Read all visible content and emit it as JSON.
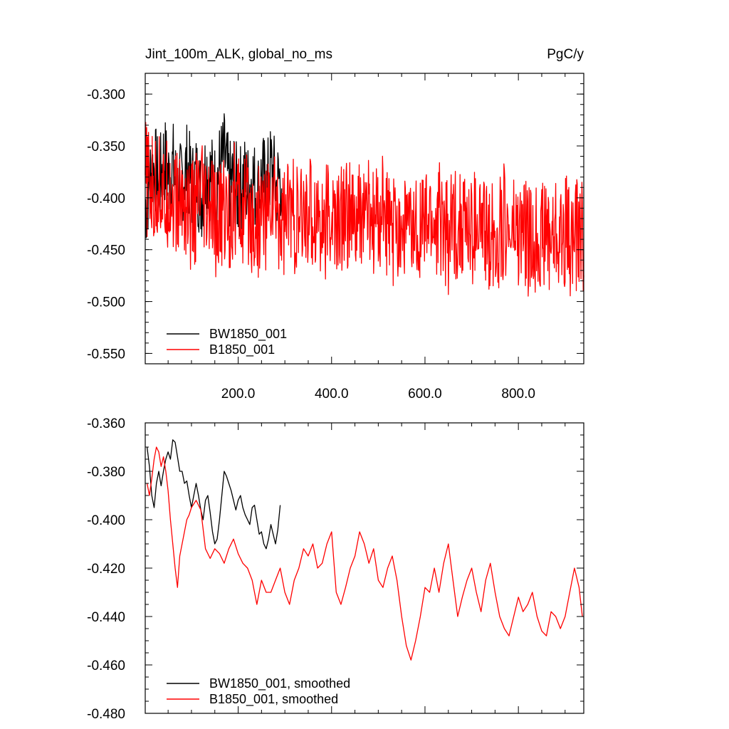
{
  "chart_data": [
    {
      "type": "line",
      "title": "Jint_100m_ALK, global_no_ms",
      "units": "PgC/y",
      "xlim": [
        1,
        940
      ],
      "ylim": [
        -0.56,
        -0.28
      ],
      "x_ticks": [
        200,
        400,
        600,
        800
      ],
      "x_tick_labels": [
        "200.0",
        "400.0",
        "600.0",
        "800.0"
      ],
      "y_ticks": [
        -0.3,
        -0.35,
        -0.4,
        -0.45,
        -0.5,
        -0.55
      ],
      "y_tick_labels": [
        "-0.300",
        "-0.350",
        "-0.400",
        "-0.450",
        "-0.500",
        "-0.550"
      ],
      "legend_position": "bottom-left",
      "series": [
        {
          "name": "BW1850_001",
          "color": "#000000",
          "x_range": [
            1,
            293
          ],
          "values_sampled_every_10": [
            -0.41,
            -0.38,
            -0.37,
            -0.39,
            -0.36,
            -0.38,
            -0.37,
            -0.4,
            -0.38,
            -0.37,
            -0.39,
            -0.38,
            -0.4,
            -0.37,
            -0.38,
            -0.39,
            -0.37,
            -0.36,
            -0.39,
            -0.38,
            -0.4,
            -0.38,
            -0.39,
            -0.38,
            -0.4,
            -0.38,
            -0.39,
            -0.37,
            -0.39,
            -0.38
          ]
        },
        {
          "name": "B1850_001",
          "color": "#ff0000",
          "x_range": [
            1,
            940
          ],
          "values_sampled_every_10": [
            -0.38,
            -0.39,
            -0.4,
            -0.38,
            -0.41,
            -0.39,
            -0.4,
            -0.41,
            -0.4,
            -0.41,
            -0.42,
            -0.41,
            -0.4,
            -0.42,
            -0.41,
            -0.43,
            -0.42,
            -0.41,
            -0.42,
            -0.4,
            -0.41,
            -0.42,
            -0.41,
            -0.42,
            -0.43,
            -0.41,
            -0.42,
            -0.4,
            -0.41,
            -0.42,
            -0.42,
            -0.41,
            -0.42,
            -0.43,
            -0.42,
            -0.41,
            -0.42,
            -0.41,
            -0.43,
            -0.42,
            -0.42,
            -0.43,
            -0.42,
            -0.41,
            -0.42,
            -0.43,
            -0.42,
            -0.41,
            -0.42,
            -0.43,
            -0.42,
            -0.41,
            -0.43,
            -0.44,
            -0.42,
            -0.43,
            -0.42,
            -0.44,
            -0.43,
            -0.42,
            -0.43,
            -0.42,
            -0.43,
            -0.42,
            -0.43,
            -0.44,
            -0.42,
            -0.43,
            -0.42,
            -0.43,
            -0.44,
            -0.42,
            -0.43,
            -0.44,
            -0.43,
            -0.44,
            -0.43,
            -0.42,
            -0.44,
            -0.43,
            -0.44,
            -0.43,
            -0.44,
            -0.45,
            -0.43,
            -0.44,
            -0.43,
            -0.44,
            -0.43,
            -0.44,
            -0.43,
            -0.44,
            -0.44,
            -0.43,
            -0.44
          ]
        }
      ]
    },
    {
      "type": "line",
      "xlim": [
        1,
        940
      ],
      "ylim": [
        -0.48,
        -0.36
      ],
      "x_ticks": [
        200,
        400,
        600,
        800
      ],
      "x_tick_labels": [],
      "y_ticks": [
        -0.36,
        -0.38,
        -0.4,
        -0.42,
        -0.44,
        -0.46,
        -0.48
      ],
      "y_tick_labels": [
        "-0.360",
        "-0.380",
        "-0.400",
        "-0.420",
        "-0.440",
        "-0.460",
        "-0.480"
      ],
      "legend_position": "bottom-left",
      "series": [
        {
          "name": "BW1850_001, smoothed",
          "color": "#000000",
          "x": [
            5,
            10,
            15,
            20,
            25,
            30,
            35,
            40,
            45,
            50,
            55,
            60,
            65,
            70,
            75,
            80,
            85,
            90,
            95,
            100,
            105,
            110,
            115,
            120,
            125,
            130,
            135,
            140,
            145,
            150,
            155,
            160,
            165,
            170,
            175,
            180,
            185,
            190,
            195,
            200,
            205,
            210,
            215,
            220,
            225,
            230,
            235,
            240,
            245,
            250,
            255,
            260,
            265,
            270,
            275,
            280,
            285,
            290
          ],
          "y": [
            -0.37,
            -0.378,
            -0.39,
            -0.395,
            -0.385,
            -0.38,
            -0.386,
            -0.38,
            -0.375,
            -0.372,
            -0.375,
            -0.367,
            -0.368,
            -0.374,
            -0.38,
            -0.38,
            -0.385,
            -0.384,
            -0.39,
            -0.395,
            -0.39,
            -0.385,
            -0.39,
            -0.396,
            -0.4,
            -0.392,
            -0.39,
            -0.397,
            -0.405,
            -0.41,
            -0.408,
            -0.4,
            -0.39,
            -0.38,
            -0.382,
            -0.385,
            -0.388,
            -0.392,
            -0.396,
            -0.392,
            -0.39,
            -0.395,
            -0.398,
            -0.4,
            -0.402,
            -0.395,
            -0.394,
            -0.4,
            -0.406,
            -0.405,
            -0.41,
            -0.412,
            -0.408,
            -0.402,
            -0.406,
            -0.41,
            -0.404,
            -0.394
          ]
        },
        {
          "name": "B1850_001, smoothed",
          "color": "#ff0000",
          "x": [
            5,
            10,
            15,
            20,
            25,
            30,
            35,
            40,
            45,
            50,
            55,
            60,
            65,
            70,
            75,
            80,
            85,
            90,
            95,
            100,
            110,
            120,
            130,
            140,
            150,
            160,
            170,
            180,
            190,
            200,
            210,
            220,
            230,
            240,
            250,
            260,
            270,
            280,
            290,
            300,
            310,
            320,
            330,
            340,
            350,
            360,
            370,
            380,
            390,
            400,
            410,
            420,
            430,
            440,
            450,
            460,
            470,
            480,
            490,
            500,
            510,
            520,
            530,
            540,
            550,
            560,
            570,
            580,
            590,
            600,
            610,
            620,
            630,
            640,
            650,
            660,
            670,
            680,
            690,
            700,
            710,
            720,
            730,
            740,
            750,
            760,
            770,
            780,
            790,
            800,
            810,
            820,
            830,
            840,
            850,
            860,
            870,
            880,
            890,
            900,
            910,
            920,
            930,
            937
          ],
          "y": [
            -0.385,
            -0.39,
            -0.383,
            -0.375,
            -0.37,
            -0.372,
            -0.378,
            -0.374,
            -0.38,
            -0.388,
            -0.4,
            -0.41,
            -0.42,
            -0.428,
            -0.415,
            -0.41,
            -0.405,
            -0.4,
            -0.398,
            -0.395,
            -0.392,
            -0.396,
            -0.412,
            -0.416,
            -0.412,
            -0.414,
            -0.418,
            -0.412,
            -0.408,
            -0.414,
            -0.418,
            -0.42,
            -0.425,
            -0.435,
            -0.425,
            -0.43,
            -0.43,
            -0.425,
            -0.42,
            -0.43,
            -0.435,
            -0.425,
            -0.42,
            -0.412,
            -0.415,
            -0.41,
            -0.42,
            -0.418,
            -0.41,
            -0.405,
            -0.43,
            -0.435,
            -0.428,
            -0.42,
            -0.415,
            -0.405,
            -0.41,
            -0.418,
            -0.412,
            -0.425,
            -0.428,
            -0.42,
            -0.415,
            -0.425,
            -0.44,
            -0.452,
            -0.458,
            -0.45,
            -0.44,
            -0.428,
            -0.43,
            -0.42,
            -0.43,
            -0.418,
            -0.41,
            -0.425,
            -0.44,
            -0.432,
            -0.425,
            -0.42,
            -0.43,
            -0.438,
            -0.425,
            -0.418,
            -0.43,
            -0.44,
            -0.445,
            -0.448,
            -0.44,
            -0.432,
            -0.438,
            -0.435,
            -0.43,
            -0.44,
            -0.446,
            -0.448,
            -0.438,
            -0.44,
            -0.445,
            -0.44,
            -0.43,
            -0.42,
            -0.428,
            -0.44
          ]
        }
      ]
    }
  ]
}
